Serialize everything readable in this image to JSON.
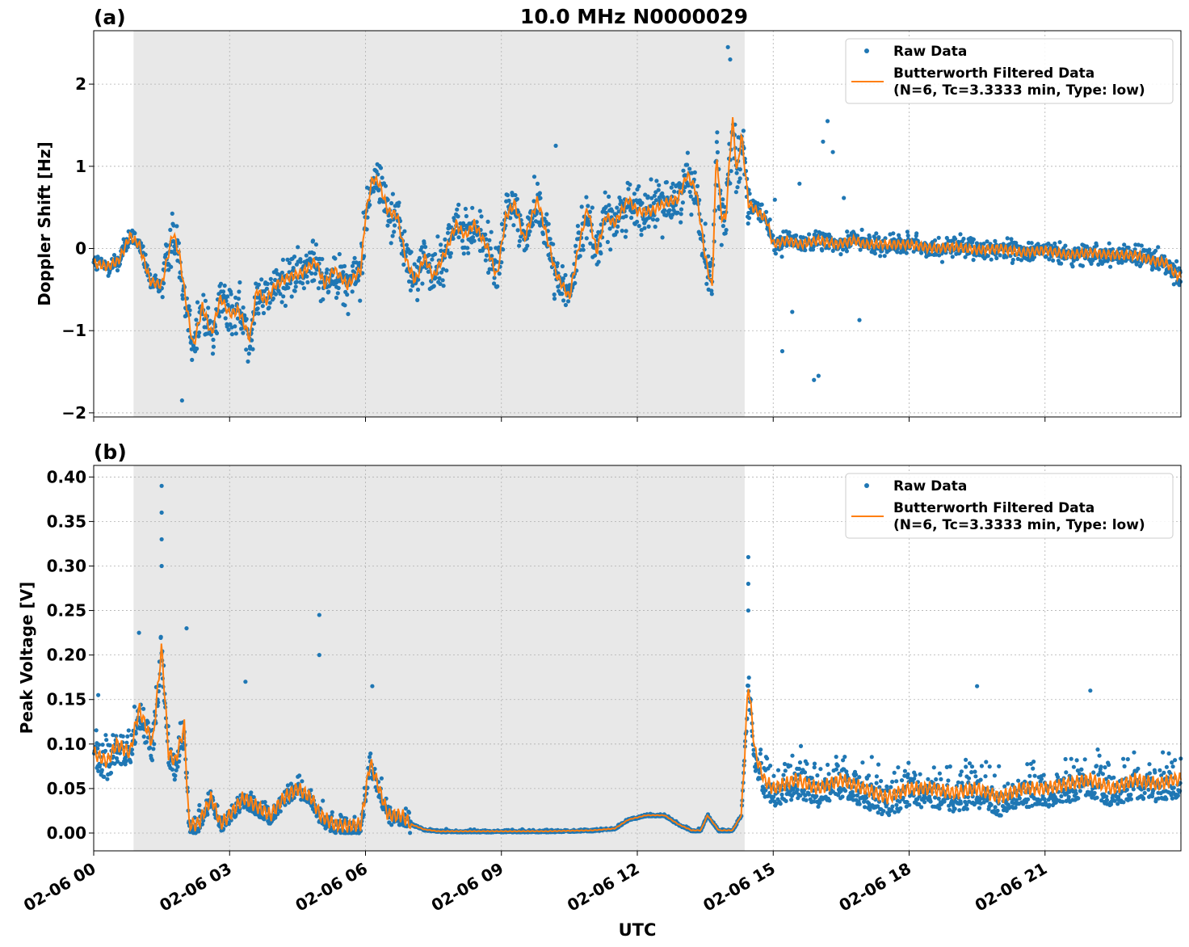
{
  "figure": {
    "title": "10.0 MHz N0000029",
    "xlabel": "UTC",
    "x_ticks": [
      "02-06 00",
      "02-06 03",
      "02-06 06",
      "02-06 09",
      "02-06 12",
      "02-06 15",
      "02-06 18",
      "02-06 21"
    ],
    "shaded_interval_hours": [
      0.88,
      14.37
    ],
    "colors": {
      "raw": "#1f77b4",
      "filtered": "#ff7f0e",
      "shade": "#e8e8e8",
      "grid": "#b0b0b0"
    }
  },
  "legend": {
    "raw_label": "Raw Data",
    "filtered_label_1": "Butterworth Filtered Data",
    "filtered_label_2": "(N=6, Tc=3.3333 min, Type: low)"
  },
  "chart_data": [
    {
      "type": "scatter",
      "panel_label": "(a)",
      "ylabel": "Doppler Shift [Hz]",
      "xlim_hours": [
        0,
        24
      ],
      "ylim": [
        -2.05,
        2.65
      ],
      "y_ticks": [
        "−2",
        "−1",
        "0",
        "1",
        "2"
      ],
      "y_tick_values": [
        -2,
        -1,
        0,
        1,
        2
      ],
      "grid": true,
      "legend_position": "top-right",
      "series": [
        {
          "name": "Butterworth Filtered Data",
          "x_hours": [
            0,
            0.3,
            0.55,
            0.8,
            1.0,
            1.25,
            1.5,
            1.75,
            1.9,
            2.05,
            2.2,
            2.4,
            2.6,
            2.8,
            3.0,
            3.2,
            3.45,
            3.6,
            3.8,
            4.0,
            4.3,
            4.6,
            4.9,
            5.1,
            5.3,
            5.6,
            5.9,
            6.0,
            6.15,
            6.3,
            6.5,
            6.7,
            6.9,
            7.1,
            7.3,
            7.5,
            7.8,
            8.0,
            8.2,
            8.4,
            8.7,
            8.9,
            9.1,
            9.3,
            9.5,
            9.8,
            10.0,
            10.2,
            10.5,
            10.7,
            10.9,
            11.1,
            11.3,
            11.5,
            11.8,
            12.0,
            12.3,
            12.6,
            12.9,
            13.1,
            13.3,
            13.5,
            13.65,
            13.75,
            13.85,
            13.95,
            14.1,
            14.2,
            14.3,
            14.45,
            14.65,
            14.85,
            15.0,
            15.3,
            15.6,
            16.0,
            16.4,
            16.8,
            17.0,
            17.5,
            18.0,
            18.5,
            19.0,
            19.5,
            20.0,
            20.5,
            21.0,
            21.5,
            22.0,
            22.5,
            23.0,
            23.4,
            23.7,
            23.85,
            24.0
          ],
          "values": [
            -0.18,
            -0.22,
            -0.15,
            0.15,
            0.05,
            -0.4,
            -0.45,
            0.2,
            -0.1,
            -0.7,
            -1.2,
            -0.7,
            -1.05,
            -0.6,
            -0.8,
            -0.75,
            -1.1,
            -0.5,
            -0.65,
            -0.45,
            -0.35,
            -0.3,
            -0.15,
            -0.45,
            -0.25,
            -0.45,
            -0.25,
            0.4,
            0.85,
            0.8,
            0.45,
            0.4,
            -0.15,
            -0.4,
            -0.1,
            -0.35,
            0.0,
            0.3,
            0.15,
            0.3,
            0.0,
            -0.35,
            0.4,
            0.55,
            0.1,
            0.6,
            0.15,
            -0.3,
            -0.6,
            0.0,
            0.5,
            -0.05,
            0.4,
            0.3,
            0.6,
            0.45,
            0.45,
            0.55,
            0.6,
            0.9,
            0.7,
            -0.1,
            -0.5,
            1.2,
            0.4,
            0.35,
            1.6,
            0.9,
            1.4,
            0.55,
            0.45,
            0.35,
            0.05,
            0.1,
            0.05,
            0.1,
            0.05,
            0.1,
            0.05,
            0.05,
            0.05,
            0.0,
            0.02,
            -0.02,
            0.0,
            -0.05,
            -0.02,
            -0.08,
            -0.05,
            -0.08,
            -0.08,
            -0.15,
            -0.18,
            -0.3,
            -0.35
          ]
        }
      ]
    },
    {
      "type": "scatter",
      "panel_label": "(b)",
      "ylabel": "Peak Voltage [V]",
      "xlim_hours": [
        0,
        24
      ],
      "ylim": [
        -0.02,
        0.413
      ],
      "y_ticks": [
        "0.00",
        "0.05",
        "0.10",
        "0.15",
        "0.20",
        "0.25",
        "0.30",
        "0.35",
        "0.40"
      ],
      "y_tick_values": [
        0,
        0.05,
        0.1,
        0.15,
        0.2,
        0.25,
        0.3,
        0.35,
        0.4
      ],
      "grid": true,
      "legend_position": "top-right",
      "series": [
        {
          "name": "Butterworth Filtered Data",
          "x_hours": [
            0,
            0.3,
            0.5,
            0.8,
            1.0,
            1.3,
            1.5,
            1.65,
            1.8,
            2.0,
            2.1,
            2.3,
            2.6,
            2.8,
            3.0,
            3.3,
            3.6,
            3.9,
            4.2,
            4.5,
            4.8,
            5.0,
            5.3,
            5.6,
            5.9,
            6.1,
            6.3,
            6.5,
            6.8,
            7.0,
            7.3,
            7.6,
            8.0,
            9.0,
            10.0,
            11.0,
            11.5,
            11.8,
            12.2,
            12.6,
            12.9,
            13.2,
            13.4,
            13.55,
            13.8,
            14.1,
            14.3,
            14.45,
            14.6,
            14.8,
            15.0,
            15.5,
            16.0,
            16.5,
            17.0,
            17.5,
            18.0,
            18.5,
            19.0,
            19.5,
            20.0,
            20.5,
            21.0,
            21.5,
            22.0,
            22.5,
            23.0,
            23.5,
            23.85,
            24.0
          ],
          "values": [
            0.09,
            0.08,
            0.1,
            0.09,
            0.14,
            0.1,
            0.21,
            0.09,
            0.08,
            0.12,
            0.01,
            0.01,
            0.04,
            0.01,
            0.02,
            0.04,
            0.03,
            0.02,
            0.04,
            0.05,
            0.04,
            0.02,
            0.01,
            0.008,
            0.01,
            0.08,
            0.05,
            0.02,
            0.02,
            0.01,
            0.004,
            0.002,
            0.002,
            0.002,
            0.002,
            0.003,
            0.005,
            0.015,
            0.02,
            0.02,
            0.01,
            0.003,
            0.003,
            0.02,
            0.003,
            0.003,
            0.02,
            0.17,
            0.09,
            0.06,
            0.05,
            0.06,
            0.05,
            0.06,
            0.05,
            0.04,
            0.05,
            0.05,
            0.045,
            0.05,
            0.04,
            0.05,
            0.05,
            0.055,
            0.06,
            0.05,
            0.06,
            0.055,
            0.06,
            0.06
          ]
        }
      ]
    }
  ]
}
